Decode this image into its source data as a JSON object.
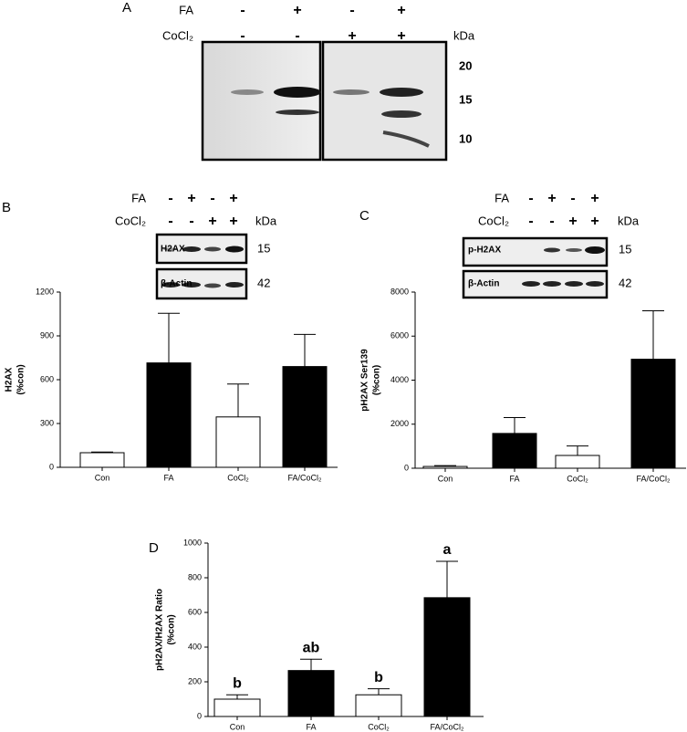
{
  "panels": {
    "a": "A",
    "b": "B",
    "c": "C",
    "d": "D"
  },
  "blots": [
    {
      "rows": [
        {
          "label": "FA",
          "signs": [
            "-",
            "+",
            "-",
            "+"
          ]
        },
        {
          "label": "CoCl₂",
          "signs": [
            "-",
            "-",
            "+",
            "+"
          ]
        }
      ],
      "unit": "kDa",
      "markers": [
        "20",
        "15",
        "10"
      ]
    },
    {
      "rows": [
        {
          "label": "FA",
          "signs": [
            "-",
            "+",
            "-",
            "+"
          ]
        },
        {
          "label": "CoCl₂",
          "signs": [
            "-",
            "-",
            "+",
            "+"
          ]
        }
      ],
      "unit": "kDa",
      "strips": [
        {
          "label": "H2AX",
          "kda": "15"
        },
        {
          "label": "β-Actin",
          "kda": "42"
        }
      ]
    },
    {
      "rows": [
        {
          "label": "FA",
          "signs": [
            "-",
            "+",
            "-",
            "+"
          ]
        },
        {
          "label": "CoCl₂",
          "signs": [
            "-",
            "-",
            "+",
            "+"
          ]
        }
      ],
      "unit": "kDa",
      "strips": [
        {
          "label": "p-H2AX",
          "kda": "15"
        },
        {
          "label": "β-Actin",
          "kda": "42"
        }
      ]
    }
  ],
  "chart_data": [
    {
      "type": "bar",
      "y_label": [
        "H2AX",
        "(%con)"
      ],
      "categories": [
        "Con",
        "FA",
        "CoCl₂",
        "FA/CoCl₂"
      ],
      "values": [
        100,
        715,
        345,
        690
      ],
      "errors": [
        5,
        340,
        225,
        220
      ],
      "colors": [
        "#ffffff",
        "#000000",
        "#ffffff",
        "#000000"
      ],
      "ylim": [
        0,
        1200
      ],
      "yticks": [
        0,
        300,
        600,
        900,
        1200
      ]
    },
    {
      "type": "bar",
      "y_label": [
        "pH2AX Ser139",
        "(%con)"
      ],
      "categories": [
        "Con",
        "FA",
        "CoCl₂",
        "FA/CoCl₂"
      ],
      "values": [
        80,
        1580,
        580,
        4950
      ],
      "errors": [
        40,
        720,
        430,
        2200
      ],
      "colors": [
        "#ffffff",
        "#000000",
        "#ffffff",
        "#000000"
      ],
      "ylim": [
        0,
        8000
      ],
      "yticks": [
        0,
        2000,
        4000,
        6000,
        8000
      ]
    },
    {
      "type": "bar",
      "y_label": [
        "pH2AX/H2AX Ratio",
        "(%con)"
      ],
      "categories": [
        "Con",
        "FA",
        "CoCl₂",
        "FA/CoCl₂"
      ],
      "values": [
        100,
        265,
        125,
        685
      ],
      "errors": [
        25,
        65,
        35,
        210
      ],
      "annotations": [
        "b",
        "ab",
        "b",
        "a"
      ],
      "colors": [
        "#ffffff",
        "#000000",
        "#ffffff",
        "#000000"
      ],
      "ylim": [
        0,
        1000
      ],
      "yticks": [
        0,
        200,
        400,
        600,
        800,
        1000
      ]
    }
  ]
}
